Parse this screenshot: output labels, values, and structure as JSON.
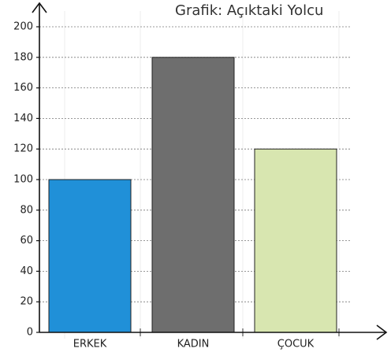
{
  "chart_data": {
    "type": "bar",
    "title": "Grafik: Açıktaki Yolcu",
    "categories": [
      "ERKEK",
      "KADIN",
      "ÇOCUK"
    ],
    "values": [
      100,
      180,
      120
    ],
    "bar_colors": [
      "#2090d8",
      "#6e6e6e",
      "#d8e6b0"
    ],
    "yticks": [
      0,
      20,
      40,
      60,
      80,
      100,
      120,
      140,
      160,
      180,
      200
    ],
    "ylim": [
      0,
      200
    ],
    "grid": true,
    "xlabel": "",
    "ylabel": ""
  }
}
